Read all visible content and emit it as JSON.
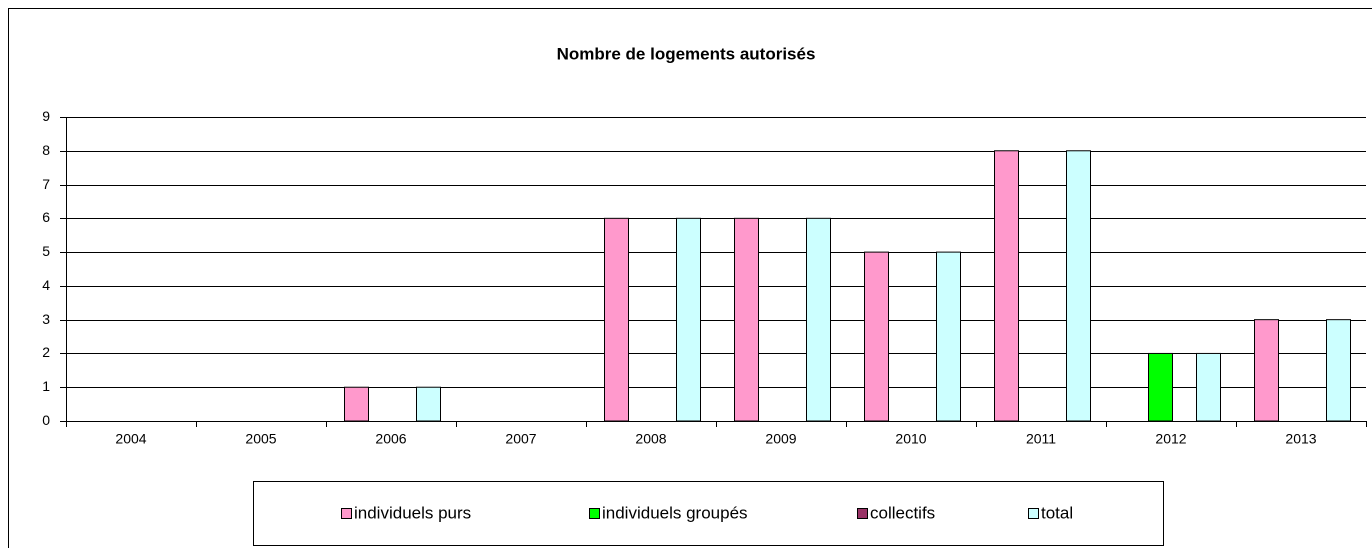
{
  "chart_data": {
    "type": "bar",
    "title": "Nombre de logements autorisés",
    "categories": [
      "2004",
      "2005",
      "2006",
      "2007",
      "2008",
      "2009",
      "2010",
      "2011",
      "2012",
      "2013"
    ],
    "series": [
      {
        "name": "individuels purs",
        "color": "#ff99cc",
        "values": [
          0,
          0,
          1,
          0,
          6,
          6,
          5,
          8,
          0,
          3
        ]
      },
      {
        "name": "individuels groupés",
        "color": "#00ff00",
        "values": [
          0,
          0,
          0,
          0,
          0,
          0,
          0,
          0,
          2,
          0
        ]
      },
      {
        "name": "collectifs",
        "color": "#993366",
        "values": [
          0,
          0,
          0,
          0,
          0,
          0,
          0,
          0,
          0,
          0
        ]
      },
      {
        "name": "total",
        "color": "#ccffff",
        "values": [
          0,
          0,
          1,
          0,
          6,
          6,
          5,
          8,
          2,
          3
        ]
      }
    ],
    "ylim": [
      0,
      9
    ],
    "yticks": [
      0,
      1,
      2,
      3,
      4,
      5,
      6,
      7,
      8,
      9
    ],
    "grid": true,
    "legend": "bottom"
  }
}
